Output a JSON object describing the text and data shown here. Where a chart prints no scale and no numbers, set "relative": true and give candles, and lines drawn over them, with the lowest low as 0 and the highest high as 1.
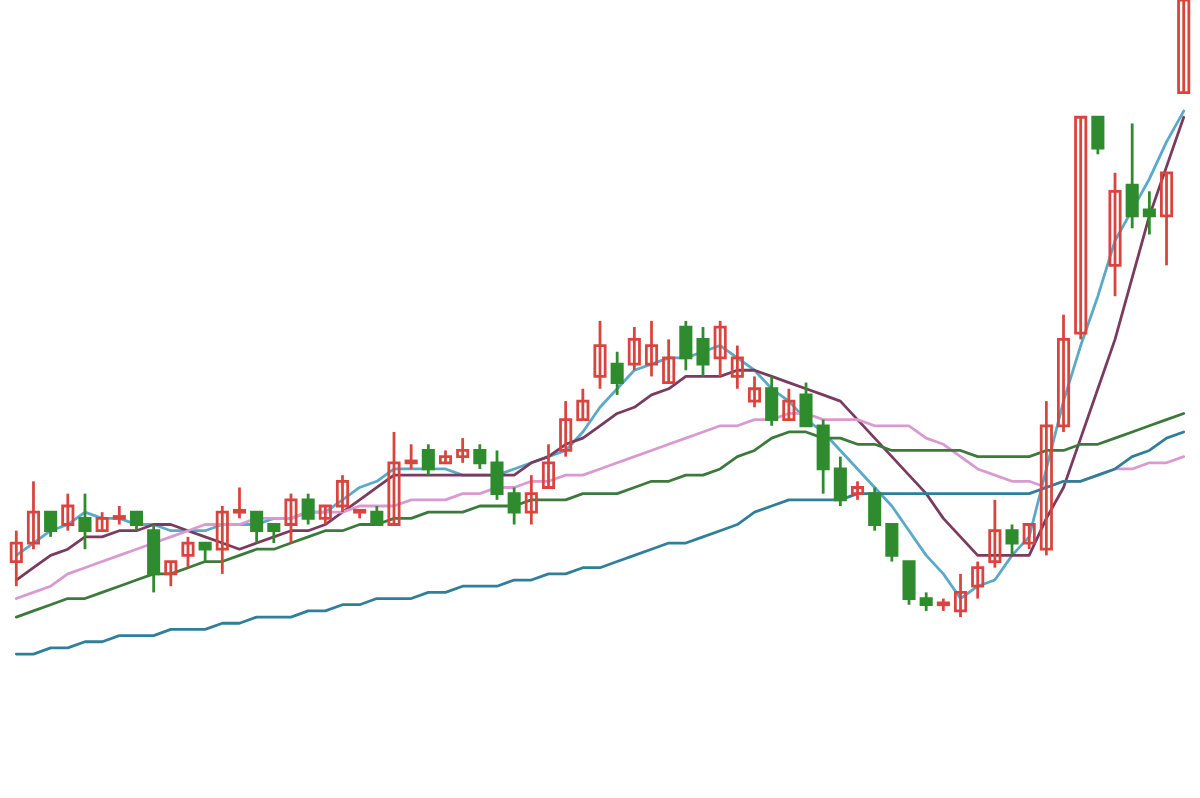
{
  "chart_data": {
    "type": "candlestick",
    "relative": true,
    "categories": [
      null,
      null,
      null,
      null,
      null,
      null,
      null,
      null,
      null,
      null,
      null,
      null,
      null,
      null,
      null,
      null,
      null,
      null,
      null,
      null,
      null,
      null,
      null,
      null,
      null,
      null,
      null,
      null,
      null,
      null,
      null,
      null,
      null,
      null,
      null,
      null,
      null,
      null,
      null,
      null,
      null,
      null,
      null,
      null,
      null,
      null,
      null,
      null,
      null,
      null,
      null,
      null,
      null,
      null,
      null,
      null,
      null,
      null,
      null,
      null,
      null,
      null,
      null,
      null,
      null,
      null,
      null,
      null,
      null
    ],
    "ohlc": [
      [
        0.09,
        0.14,
        0.05,
        0.12
      ],
      [
        0.12,
        0.22,
        0.11,
        0.17
      ],
      [
        0.17,
        0.17,
        0.13,
        0.14
      ],
      [
        0.15,
        0.2,
        0.14,
        0.18
      ],
      [
        0.16,
        0.2,
        0.11,
        0.14
      ],
      [
        0.14,
        0.17,
        0.14,
        0.16
      ],
      [
        0.16,
        0.18,
        0.15,
        0.16
      ],
      [
        0.17,
        0.17,
        0.14,
        0.15
      ],
      [
        0.14,
        0.15,
        0.04,
        0.07
      ],
      [
        0.07,
        0.09,
        0.05,
        0.09
      ],
      [
        0.1,
        0.13,
        0.08,
        0.12
      ],
      [
        0.12,
        0.12,
        0.09,
        0.11
      ],
      [
        0.11,
        0.18,
        0.07,
        0.17
      ],
      [
        0.17,
        0.21,
        0.16,
        0.17
      ],
      [
        0.17,
        0.17,
        0.12,
        0.14
      ],
      [
        0.15,
        0.15,
        0.12,
        0.14
      ],
      [
        0.15,
        0.2,
        0.12,
        0.19
      ],
      [
        0.19,
        0.2,
        0.15,
        0.16
      ],
      [
        0.16,
        0.18,
        0.15,
        0.18
      ],
      [
        0.18,
        0.23,
        0.17,
        0.22
      ],
      [
        0.17,
        0.17,
        0.16,
        0.17
      ],
      [
        0.17,
        0.18,
        0.15,
        0.15
      ],
      [
        0.15,
        0.3,
        0.15,
        0.25
      ],
      [
        0.25,
        0.28,
        0.24,
        0.25
      ],
      [
        0.27,
        0.28,
        0.23,
        0.24
      ],
      [
        0.25,
        0.27,
        0.25,
        0.26
      ],
      [
        0.26,
        0.29,
        0.25,
        0.27
      ],
      [
        0.27,
        0.28,
        0.24,
        0.25
      ],
      [
        0.25,
        0.27,
        0.19,
        0.2
      ],
      [
        0.2,
        0.21,
        0.15,
        0.17
      ],
      [
        0.17,
        0.23,
        0.15,
        0.2
      ],
      [
        0.21,
        0.28,
        0.21,
        0.25
      ],
      [
        0.27,
        0.35,
        0.26,
        0.32
      ],
      [
        0.32,
        0.37,
        0.32,
        0.35
      ],
      [
        0.39,
        0.48,
        0.37,
        0.44
      ],
      [
        0.41,
        0.43,
        0.36,
        0.38
      ],
      [
        0.41,
        0.47,
        0.4,
        0.45
      ],
      [
        0.41,
        0.48,
        0.39,
        0.44
      ],
      [
        0.38,
        0.45,
        0.38,
        0.42
      ],
      [
        0.47,
        0.48,
        0.4,
        0.42
      ],
      [
        0.45,
        0.47,
        0.39,
        0.41
      ],
      [
        0.42,
        0.48,
        0.39,
        0.47
      ],
      [
        0.39,
        0.44,
        0.37,
        0.42
      ],
      [
        0.35,
        0.39,
        0.34,
        0.37
      ],
      [
        0.37,
        0.39,
        0.31,
        0.32
      ],
      [
        0.32,
        0.37,
        0.32,
        0.35
      ],
      [
        0.36,
        0.38,
        0.31,
        0.31
      ],
      [
        0.31,
        0.32,
        0.2,
        0.24
      ],
      [
        0.24,
        0.26,
        0.18,
        0.19
      ],
      [
        0.2,
        0.22,
        0.19,
        0.21
      ],
      [
        0.2,
        0.21,
        0.14,
        0.15
      ],
      [
        0.15,
        0.15,
        0.09,
        0.1
      ],
      [
        0.09,
        0.09,
        0.02,
        0.03
      ],
      [
        0.03,
        0.04,
        0.01,
        0.02
      ],
      [
        0.02,
        0.03,
        0.01,
        0.02
      ],
      [
        0.01,
        0.07,
        0,
        0.04
      ],
      [
        0.05,
        0.09,
        0.03,
        0.08
      ],
      [
        0.09,
        0.19,
        0.08,
        0.14
      ],
      [
        0.14,
        0.15,
        0.1,
        0.12
      ],
      [
        0.12,
        0.15,
        0.11,
        0.15
      ],
      [
        0.11,
        0.35,
        0.1,
        0.31
      ],
      [
        0.31,
        0.49,
        0.3,
        0.45
      ],
      [
        0.46,
        0.81,
        0.45,
        0.81
      ],
      [
        0.81,
        0.81,
        0.75,
        0.76
      ],
      [
        0.57,
        0.72,
        0.52,
        0.69
      ],
      [
        0.7,
        0.8,
        0.63,
        0.65
      ],
      [
        0.66,
        0.69,
        0.62,
        0.65
      ],
      [
        0.65,
        0.72,
        0.57,
        0.72
      ],
      [
        0.85,
        1,
        0.85,
        1
      ]
    ],
    "series": [
      {
        "type": "line",
        "color": "#5aa9c8",
        "values": [
          0.1,
          0.12,
          0.14,
          0.15,
          0.17,
          0.16,
          0.16,
          0.15,
          0.15,
          0.14,
          0.14,
          0.14,
          0.15,
          0.15,
          0.15,
          0.16,
          0.16,
          0.17,
          0.17,
          0.19,
          0.21,
          0.22,
          0.24,
          0.24,
          0.24,
          0.24,
          0.23,
          0.23,
          0.23,
          0.24,
          0.25,
          0.26,
          0.27,
          0.3,
          0.34,
          0.37,
          0.4,
          0.41,
          0.42,
          0.42,
          0.43,
          0.44,
          0.42,
          0.4,
          0.37,
          0.35,
          0.32,
          0.3,
          0.27,
          0.24,
          0.21,
          0.18,
          0.14,
          0.1,
          0.07,
          0.03,
          0.05,
          0.06,
          0.1,
          0.13,
          0.24,
          0.35,
          0.44,
          0.52,
          0.61,
          0.66,
          0.71,
          0.77,
          0.82
        ]
      },
      {
        "type": "line",
        "color": "#7a3b5e",
        "values": [
          0.06,
          0.08,
          0.1,
          0.11,
          0.13,
          0.13,
          0.14,
          0.14,
          0.15,
          0.15,
          0.14,
          0.13,
          0.12,
          0.11,
          0.12,
          0.13,
          0.14,
          0.14,
          0.15,
          0.17,
          0.19,
          0.21,
          0.23,
          0.23,
          0.23,
          0.23,
          0.23,
          0.23,
          0.23,
          0.23,
          0.25,
          0.26,
          0.28,
          0.29,
          0.31,
          0.33,
          0.34,
          0.36,
          0.37,
          0.39,
          0.39,
          0.39,
          0.4,
          0.4,
          0.39,
          0.38,
          0.37,
          0.36,
          0.35,
          0.32,
          0.29,
          0.26,
          0.23,
          0.2,
          0.16,
          0.13,
          0.1,
          0.1,
          0.1,
          0.1,
          0.16,
          0.21,
          0.29,
          0.37,
          0.45,
          0.55,
          0.65,
          0.73,
          0.81
        ]
      },
      {
        "type": "line",
        "color": "#d99ad2",
        "values": [
          0.03,
          0.04,
          0.05,
          0.07,
          0.08,
          0.09,
          0.1,
          0.11,
          0.12,
          0.13,
          0.14,
          0.15,
          0.15,
          0.15,
          0.16,
          0.16,
          0.16,
          0.17,
          0.17,
          0.17,
          0.18,
          0.18,
          0.18,
          0.19,
          0.19,
          0.19,
          0.2,
          0.2,
          0.21,
          0.21,
          0.22,
          0.22,
          0.23,
          0.23,
          0.24,
          0.25,
          0.26,
          0.27,
          0.28,
          0.29,
          0.3,
          0.31,
          0.31,
          0.32,
          0.32,
          0.33,
          0.33,
          0.32,
          0.32,
          0.32,
          0.31,
          0.31,
          0.31,
          0.29,
          0.28,
          0.26,
          0.24,
          0.23,
          0.22,
          0.22,
          0.21,
          0.22,
          0.22,
          0.23,
          0.24,
          0.24,
          0.25,
          0.25,
          0.26
        ]
      },
      {
        "type": "line",
        "color": "#3c7a3c",
        "values": [
          0.0,
          0.01,
          0.02,
          0.03,
          0.03,
          0.04,
          0.05,
          0.06,
          0.07,
          0.07,
          0.08,
          0.09,
          0.09,
          0.1,
          0.11,
          0.11,
          0.12,
          0.13,
          0.14,
          0.14,
          0.15,
          0.15,
          0.16,
          0.16,
          0.17,
          0.17,
          0.17,
          0.18,
          0.18,
          0.18,
          0.19,
          0.19,
          0.19,
          0.2,
          0.2,
          0.2,
          0.21,
          0.22,
          0.22,
          0.23,
          0.23,
          0.24,
          0.26,
          0.27,
          0.29,
          0.3,
          0.3,
          0.29,
          0.29,
          0.28,
          0.28,
          0.27,
          0.27,
          0.27,
          0.27,
          0.27,
          0.26,
          0.26,
          0.26,
          0.26,
          0.27,
          0.27,
          0.28,
          0.28,
          0.29,
          0.3,
          0.31,
          0.32,
          0.33
        ]
      },
      {
        "type": "line",
        "color": "#2f7f9a",
        "values": [
          -0.06,
          -0.06,
          -0.05,
          -0.05,
          -0.04,
          -0.04,
          -0.03,
          -0.03,
          -0.03,
          -0.02,
          -0.02,
          -0.02,
          -0.01,
          -0.01,
          0.0,
          0.0,
          0.0,
          0.01,
          0.01,
          0.02,
          0.02,
          0.03,
          0.03,
          0.03,
          0.04,
          0.04,
          0.05,
          0.05,
          0.05,
          0.06,
          0.06,
          0.07,
          0.07,
          0.08,
          0.08,
          0.09,
          0.1,
          0.11,
          0.12,
          0.12,
          0.13,
          0.14,
          0.15,
          0.17,
          0.18,
          0.19,
          0.19,
          0.19,
          0.19,
          0.2,
          0.2,
          0.2,
          0.2,
          0.2,
          0.2,
          0.2,
          0.2,
          0.2,
          0.2,
          0.2,
          0.21,
          0.22,
          0.22,
          0.23,
          0.24,
          0.26,
          0.27,
          0.29,
          0.3
        ]
      }
    ]
  }
}
